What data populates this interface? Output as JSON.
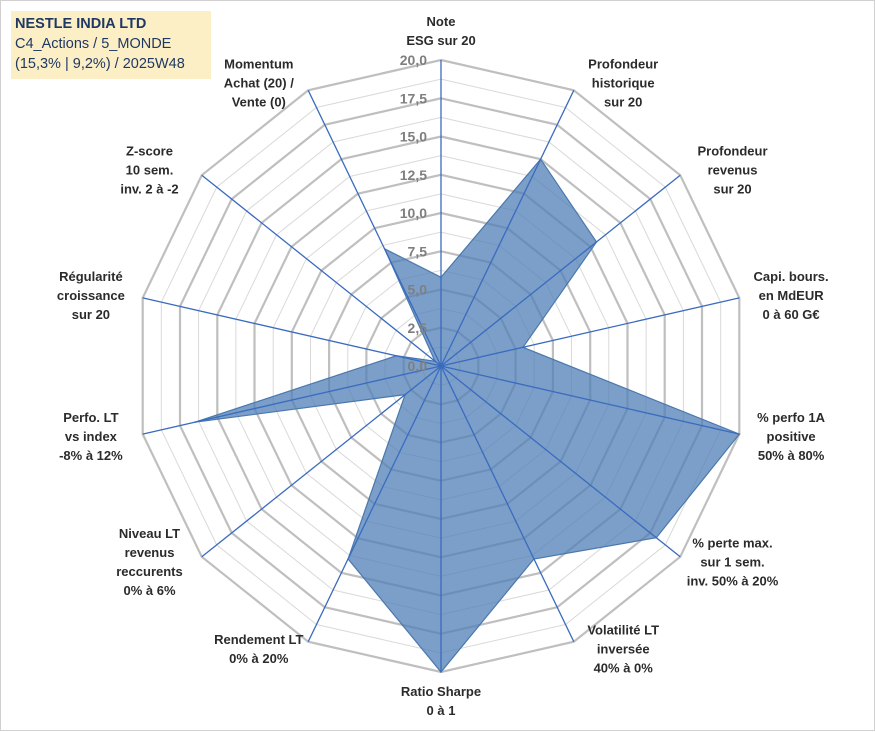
{
  "header": {
    "line1": "NESTLE INDIA LTD",
    "line2": "C4_Actions / 5_MONDE",
    "line3": "(15,3% | 9,2%) / 2025W48"
  },
  "colors": {
    "fill": "#4f7fb5",
    "fill_opacity": 0.75,
    "spokes": "#3a6bbf",
    "outer_grid": "#bfbfbf",
    "inner_grid": "#d9d9d9",
    "title_bg": "#fcefc6",
    "title_text": "#1f3864"
  },
  "chart_data": {
    "type": "radar",
    "rmin": 0,
    "rmax": 20,
    "grid_step": 1.25,
    "tick_values": [
      0,
      2.5,
      5,
      7.5,
      10,
      12.5,
      15,
      17.5,
      20
    ],
    "tick_labels": [
      "0,0",
      "2,5",
      "5,0",
      "7,5",
      "10,0",
      "12,5",
      "15,0",
      "17,5",
      "20,0"
    ],
    "axes": [
      {
        "label": [
          "Note",
          "ESG sur 20"
        ],
        "value": 5.8
      },
      {
        "label": [
          "Profondeur",
          "historique",
          "sur 20"
        ],
        "value": 15.0
      },
      {
        "label": [
          "Profondeur",
          "revenus",
          "sur 20"
        ],
        "value": 13.0
      },
      {
        "label": [
          "Capi. bours.",
          "en MdEUR",
          "0 à 60 G€"
        ],
        "value": 5.5
      },
      {
        "label": [
          "% perfo 1A",
          "positive",
          "50% à 80%"
        ],
        "value": 20.0
      },
      {
        "label": [
          "% perte max.",
          "sur 1 sem.",
          "inv. 50% à 20%"
        ],
        "value": 18.0
      },
      {
        "label": [
          "Volatilité LT",
          "inversée",
          "40% à 0%"
        ],
        "value": 14.0
      },
      {
        "label": [
          "Ratio Sharpe",
          "0 à 1"
        ],
        "value": 20.0
      },
      {
        "label": [
          "Rendement LT",
          "0% à 20%"
        ],
        "value": 14.0
      },
      {
        "label": [
          "Niveau LT",
          "revenus",
          "reccurents",
          "0% à 6%"
        ],
        "value": 3.0
      },
      {
        "label": [
          "Perfo. LT",
          "vs index",
          "-8% à 12%"
        ],
        "value": 16.5
      },
      {
        "label": [
          "Régularité",
          "croissance",
          "sur 20"
        ],
        "value": 3.0
      },
      {
        "label": [
          "Z-score",
          "10 sem.",
          "inv. 2 à -2"
        ],
        "value": 0.5
      },
      {
        "label": [
          "Momentum",
          "Achat (20) /",
          "Vente (0)"
        ],
        "value": 8.5
      }
    ]
  }
}
